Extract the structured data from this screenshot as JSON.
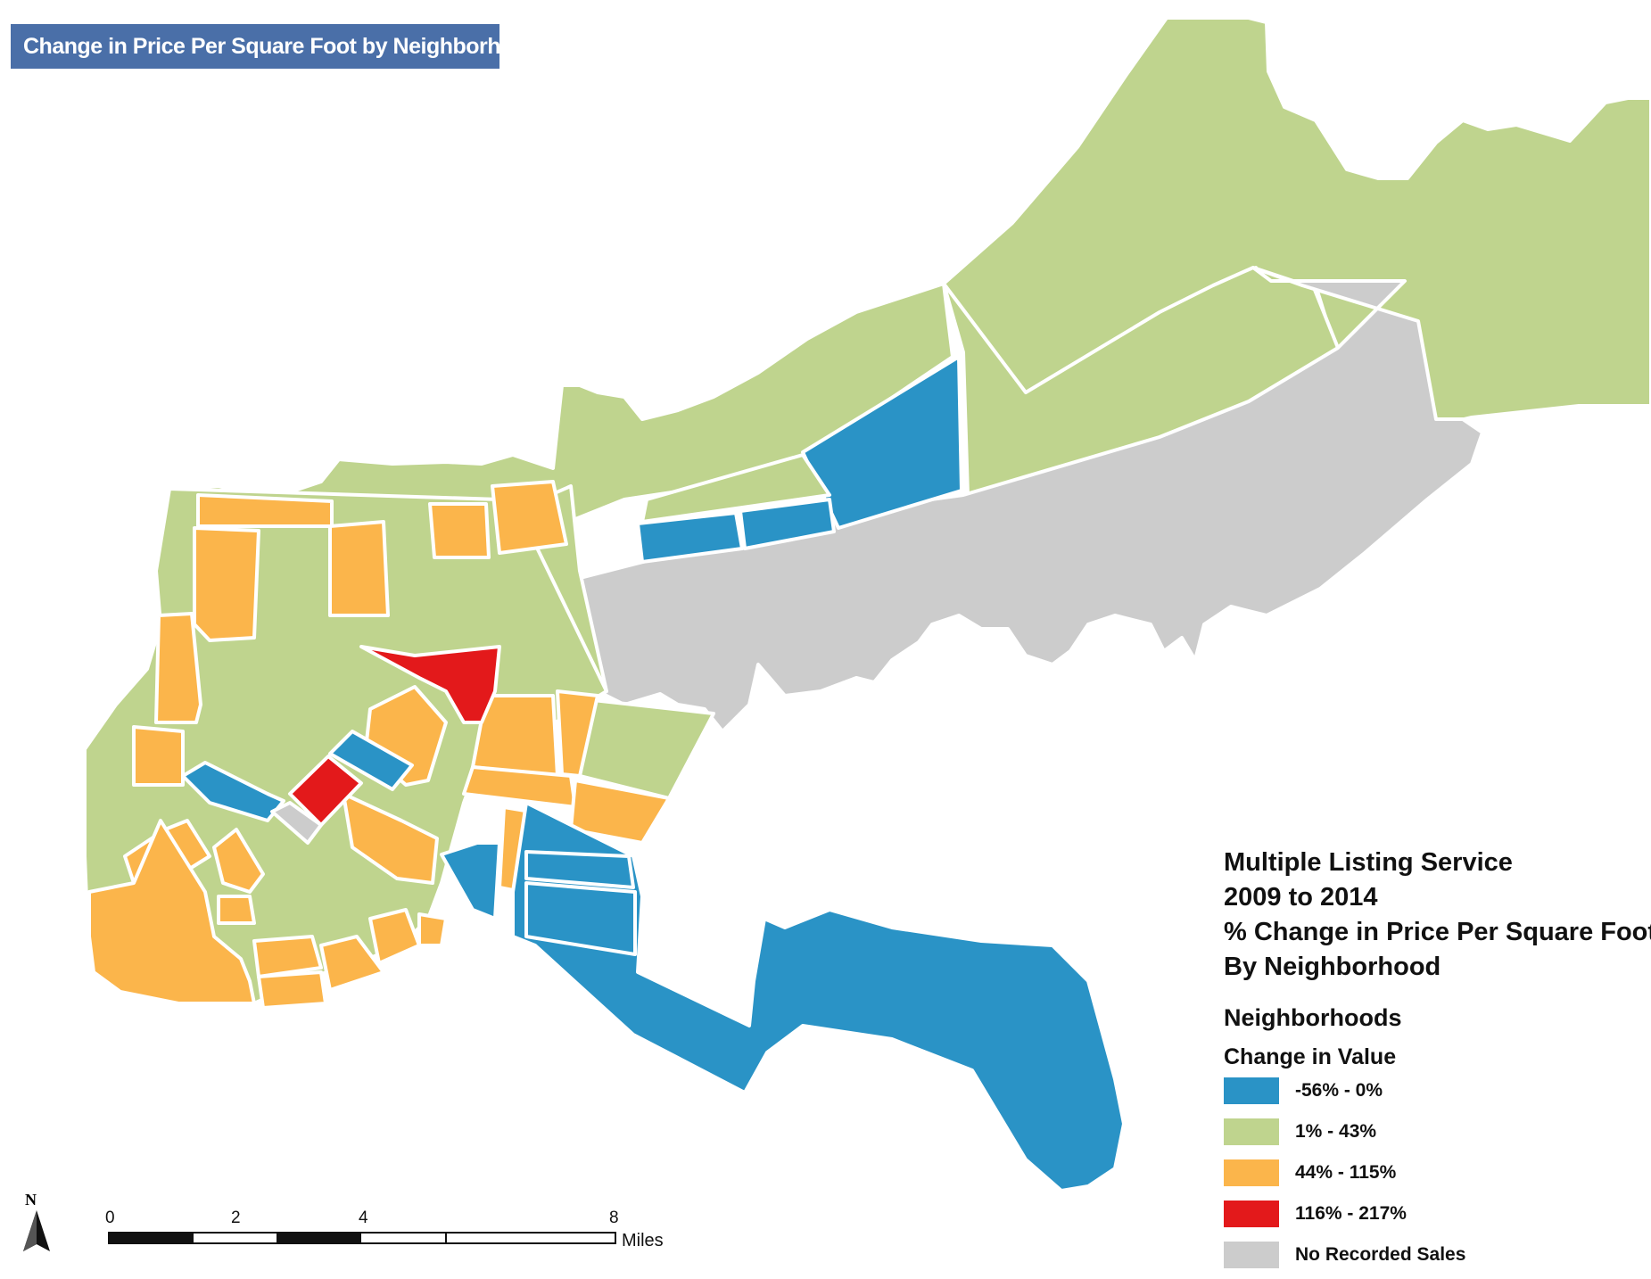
{
  "map_title": "Change in Price Per Square Foot by Neighborhood",
  "legend": {
    "heading_lines": [
      "Multiple Listing Service",
      "2009 to 2014",
      "% Change in Price Per Square Foot",
      "By Neighborhood"
    ],
    "layer_name": "Neighborhoods",
    "field_name": "Change in Value",
    "classes": [
      {
        "label": "-56% - 0%",
        "color": "#2a93c6"
      },
      {
        "label": "1% - 43%",
        "color": "#bfd48e"
      },
      {
        "label": "44% - 115%",
        "color": "#fbb54b"
      },
      {
        "label": "116% - 217%",
        "color": "#e3191b"
      },
      {
        "label": "No Recorded Sales",
        "color": "#cccccc"
      }
    ]
  },
  "north_arrow": {
    "label": "N"
  },
  "scale_bar": {
    "ticks": [
      "0",
      "2",
      "4",
      "8"
    ],
    "unit": "Miles"
  }
}
